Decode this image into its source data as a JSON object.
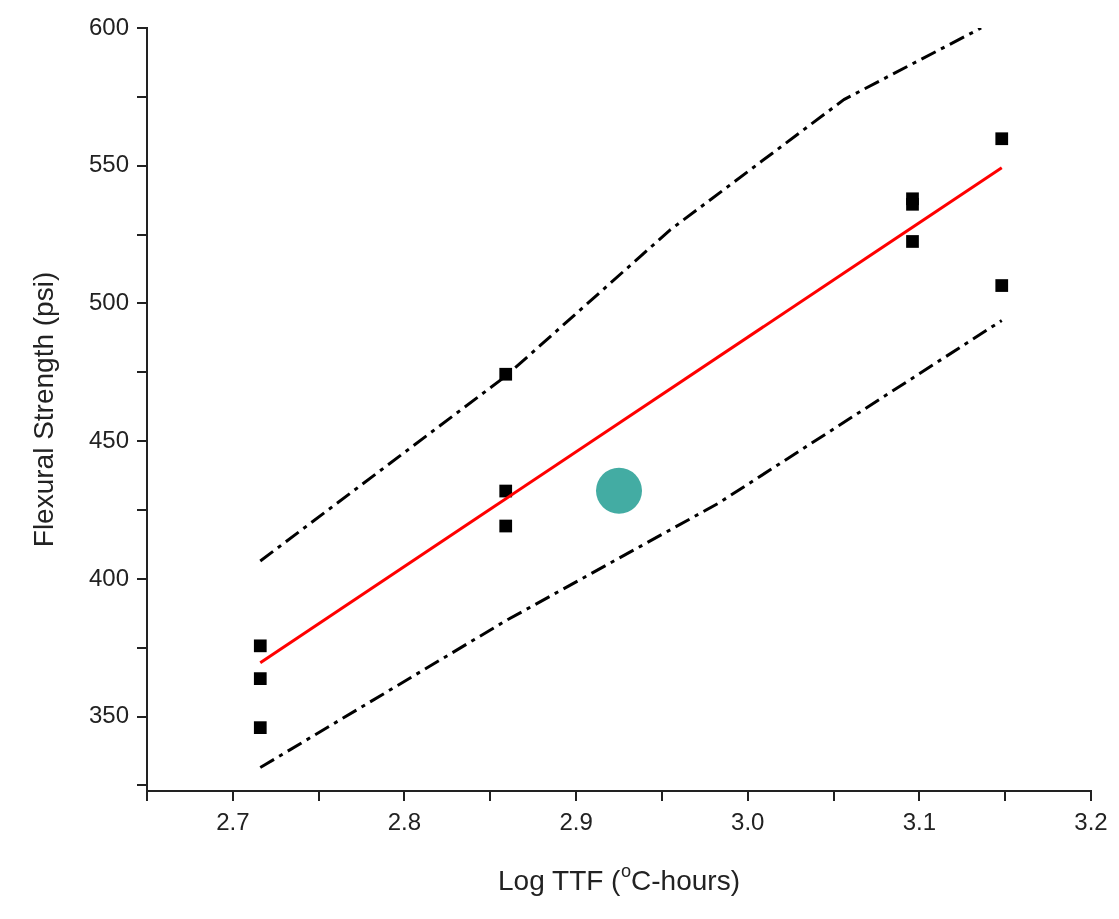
{
  "chart_data": {
    "type": "scatter",
    "xlabel": "Log TTF ($^{o}$C-hours)",
    "ylabel": "Flexural Strength (psi)",
    "xlim": [
      2.65,
      3.2
    ],
    "ylim": [
      323,
      600
    ],
    "xticks": [
      {
        "value": 2.65,
        "label": null
      },
      2.7,
      {
        "value": 2.75,
        "label": null
      },
      2.8,
      {
        "value": 2.85,
        "label": null
      },
      2.9,
      {
        "value": 2.95,
        "label": null
      },
      {
        "value": 3.0,
        "label": "3.0"
      },
      {
        "value": 3.05,
        "label": null
      },
      3.1,
      {
        "value": 3.15,
        "label": null
      },
      3.2
    ],
    "yticks": [
      {
        "value": 325,
        "label": null
      },
      350,
      {
        "value": 375,
        "label": null
      },
      400,
      {
        "value": 425,
        "label": null
      },
      450,
      {
        "value": 475,
        "label": null
      },
      500,
      {
        "value": 525,
        "label": null
      },
      550,
      {
        "value": 575,
        "label": null
      },
      600
    ],
    "grid": false,
    "legend": false,
    "series": [
      {
        "type": "line",
        "color": "#ff0000",
        "marker": "none",
        "line_style": "solid",
        "x": [
          2.716,
          3.148
        ],
        "values": [
          369.6,
          549.3
        ]
      },
      {
        "type": "line",
        "color": "#000000",
        "marker": "none",
        "line_style": "dashed",
        "x": [
          2.716,
          2.859,
          2.955,
          3.056,
          3.136
        ],
        "values": [
          406.5,
          473.6,
          526.8,
          574,
          600
        ]
      },
      {
        "type": "line",
        "color": "#000000",
        "marker": "none",
        "line_style": "dashed",
        "x": [
          2.716,
          2.859,
          2.983,
          3.148
        ],
        "values": [
          331.5,
          384.8,
          427.5,
          493.8
        ]
      },
      {
        "color": "#000000",
        "marker": "square",
        "x": [
          2.716,
          2.716,
          2.716,
          2.859,
          2.859,
          2.859,
          3.096,
          3.096,
          3.096,
          3.148,
          3.148
        ],
        "values": [
          375.7,
          363.8,
          346,
          474.3,
          431.9,
          419.2,
          538,
          536,
          522.5,
          559.8,
          506.5
        ]
      },
      {
        "color": "#43aca3",
        "marker": "circle",
        "x": [
          2.925
        ],
        "values": [
          432
        ]
      }
    ]
  }
}
